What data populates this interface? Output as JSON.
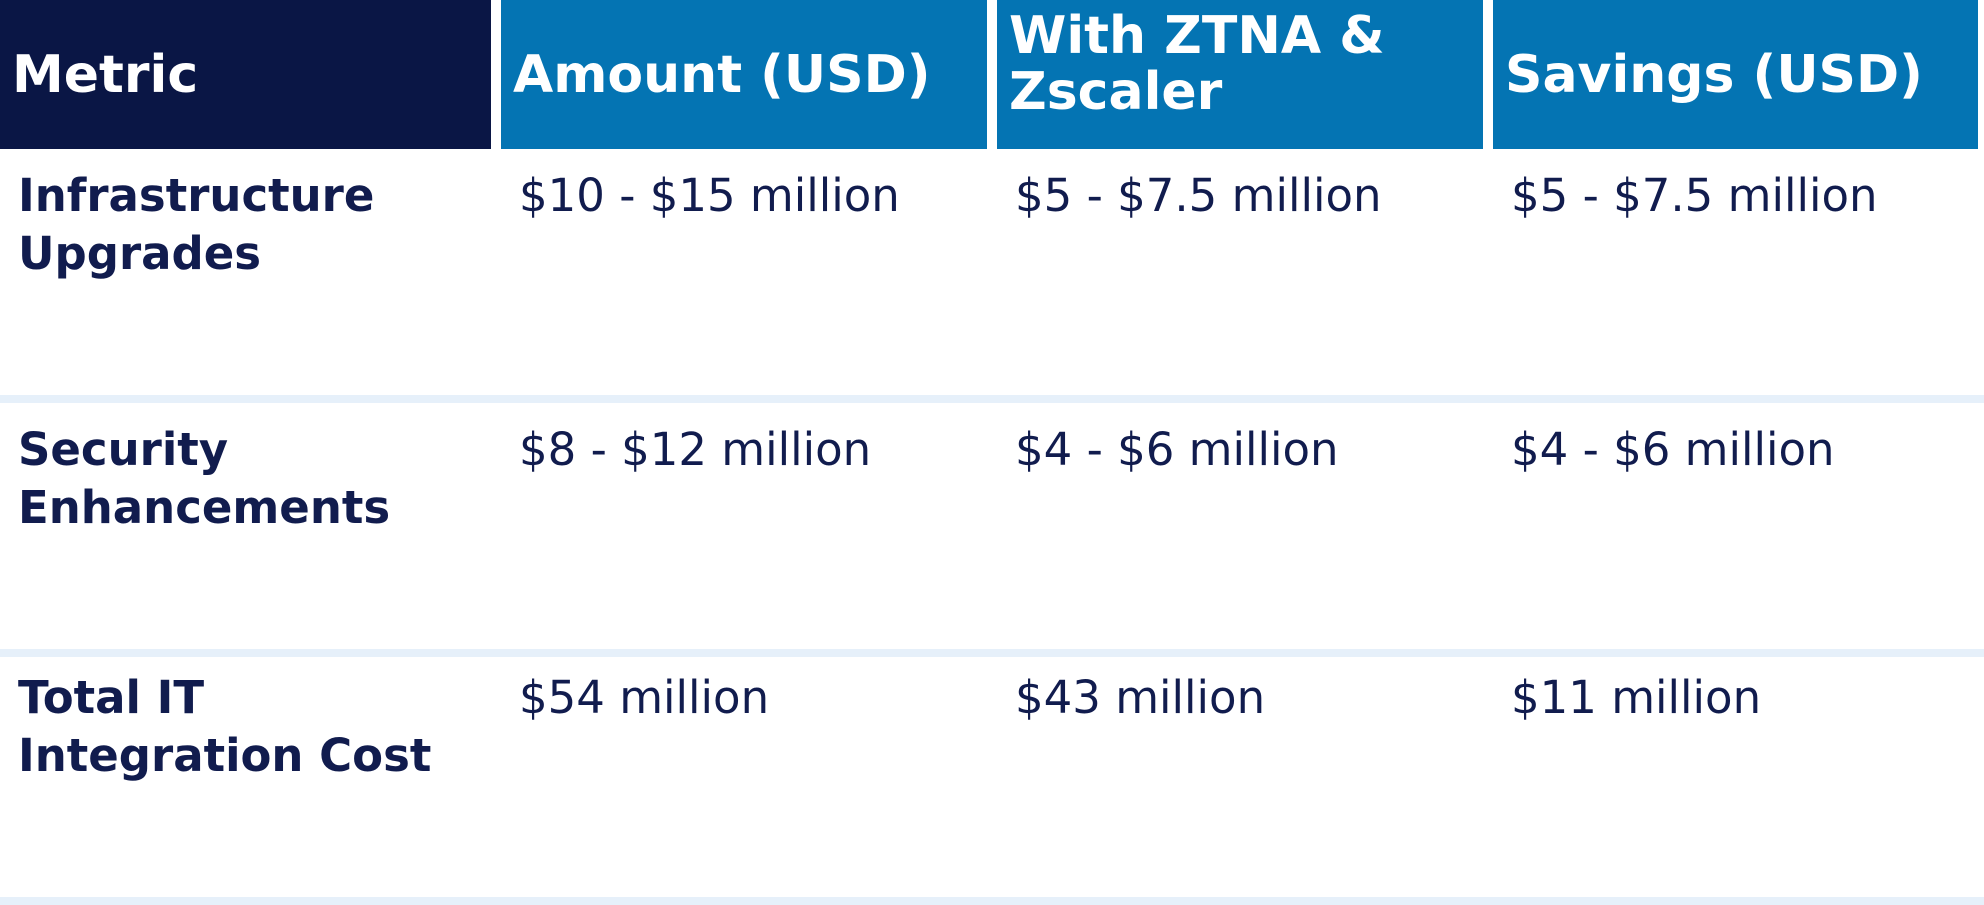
{
  "table": {
    "header": [
      "Metric",
      "Amount (USD)",
      "With ZTNA & Zscaler",
      "Savings (USD)"
    ],
    "rows": [
      [
        "Infrastructure Upgrades",
        "$10 - $15 million",
        "$5 - $7.5 million",
        "$5 - $7.5 million"
      ],
      [
        "Security Enhancements",
        "$8 - $12 million",
        "$4 - $6 million",
        "$4 - $6 million"
      ],
      [
        "Total IT Integration Cost",
        "$54 million",
        "$43 million",
        "$11 million"
      ]
    ]
  }
}
